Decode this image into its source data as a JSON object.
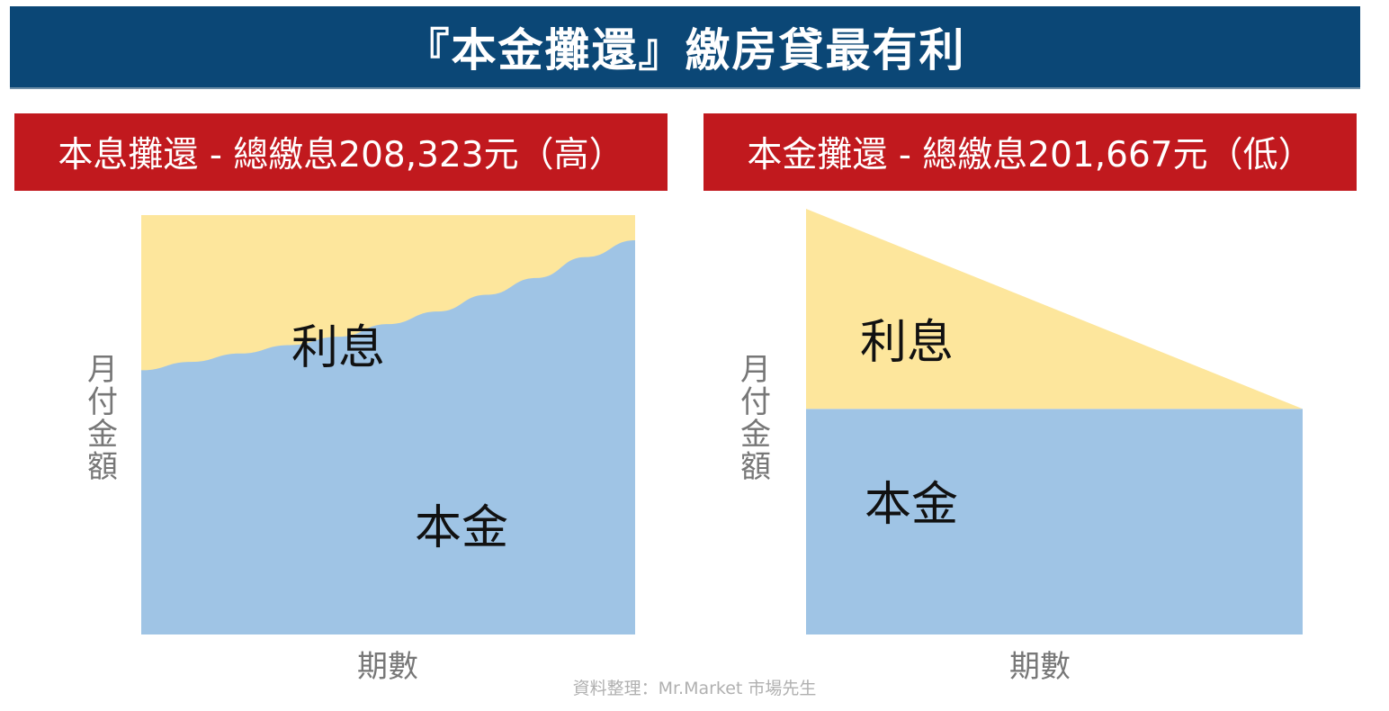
{
  "title": "『本金攤還』繳房貸最有利",
  "colors": {
    "title_bg": "#0b4776",
    "subhead_bg": "#c1191e",
    "interest": "#fde69c",
    "principal": "#9fc4e5",
    "axis_text": "#777777"
  },
  "source_note": "資料整理：Mr.Market 市場先生",
  "chart_data": [
    {
      "type": "area",
      "subtitle": "本息攤還 - 總繳息208,323元（高）",
      "xlabel": "期數",
      "ylabel": "月付金額",
      "series": [
        {
          "name": "利息",
          "values": [
            0.37,
            0.35,
            0.33,
            0.31,
            0.29,
            0.26,
            0.23,
            0.19,
            0.15,
            0.1,
            0.06
          ]
        },
        {
          "name": "本金",
          "values": [
            0.63,
            0.65,
            0.67,
            0.69,
            0.71,
            0.74,
            0.77,
            0.81,
            0.85,
            0.9,
            0.94
          ]
        }
      ],
      "total_payment": 1.0,
      "x_progress": [
        0,
        0.1,
        0.2,
        0.3,
        0.4,
        0.5,
        0.6,
        0.7,
        0.8,
        0.9,
        1.0
      ]
    },
    {
      "type": "area",
      "subtitle": "本金攤還 - 總繳息201,667元（低）",
      "xlabel": "期數",
      "ylabel": "月付金額",
      "series": [
        {
          "name": "利息",
          "values": [
            0.47,
            0.0
          ]
        },
        {
          "name": "本金",
          "values": [
            0.53,
            0.53
          ]
        }
      ],
      "x_progress": [
        0,
        1.0
      ]
    }
  ]
}
